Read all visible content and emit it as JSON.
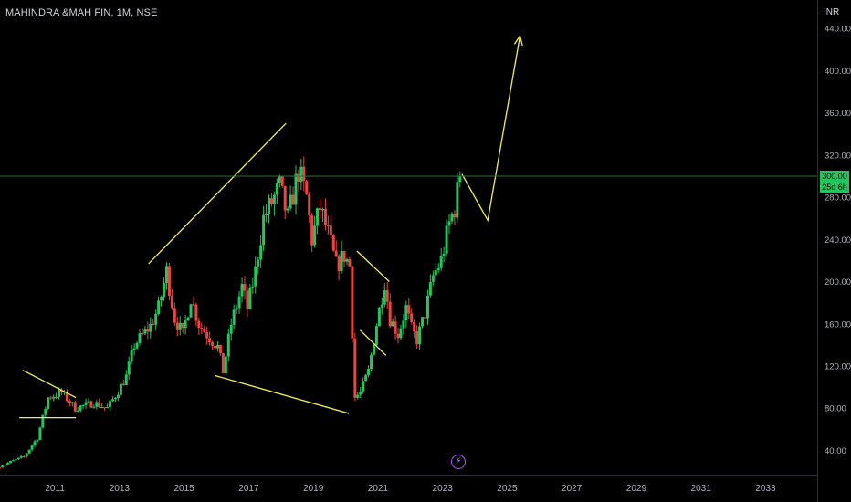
{
  "header": {
    "title": "MAHINDRA &MAH FIN, 1M, NSE",
    "currency": "INR"
  },
  "price_tags": {
    "last": "300.00",
    "countdown": "25d 6h"
  },
  "icons": {
    "bolt": "lightning-bolt-icon"
  },
  "colors": {
    "up": "#22c55e",
    "down": "#ef4444",
    "drawing": "#f5f05a",
    "priceLine": "#2f6b2f",
    "text": "#d1d4dc",
    "bolt": "#a855f7"
  },
  "chart_data": {
    "type": "candlestick",
    "title": "MAHINDRA &MAH FIN, 1M, NSE",
    "xlabel": "",
    "ylabel": "INR",
    "ylim": [
      17,
      467
    ],
    "xlim": [
      2009.3,
      2034.6
    ],
    "x_ticks": [
      "2011",
      "2013",
      "2015",
      "2017",
      "2019",
      "2021",
      "2023",
      "2025",
      "2027",
      "2029",
      "2031",
      "2033"
    ],
    "y_ticks": [
      "40.00",
      "80.00",
      "120.00",
      "160.00",
      "200.00",
      "240.00",
      "280.00",
      "320.00",
      "360.00",
      "400.00",
      "440.00"
    ],
    "grid": false,
    "last_price": 300.0,
    "close_path": [
      [
        "2009-04",
        25
      ],
      [
        "2010-01",
        34
      ],
      [
        "2010-06",
        52
      ],
      [
        "2010-10",
        90
      ],
      [
        "2011-03",
        95
      ],
      [
        "2011-08",
        80
      ],
      [
        "2012-03",
        85
      ],
      [
        "2012-08",
        80
      ],
      [
        "2012-11",
        92
      ],
      [
        "2013-03",
        110
      ],
      [
        "2013-06",
        140
      ],
      [
        "2013-12",
        158
      ],
      [
        "2014-03",
        175
      ],
      [
        "2014-06",
        210
      ],
      [
        "2014-09",
        165
      ],
      [
        "2014-12",
        150
      ],
      [
        "2015-03",
        185
      ],
      [
        "2015-06",
        160
      ],
      [
        "2015-09",
        150
      ],
      [
        "2016-01",
        138
      ],
      [
        "2016-03",
        115
      ],
      [
        "2016-06",
        160
      ],
      [
        "2016-10",
        195
      ],
      [
        "2016-12",
        175
      ],
      [
        "2017-03",
        210
      ],
      [
        "2017-06",
        260
      ],
      [
        "2017-09",
        275
      ],
      [
        "2017-12",
        290
      ],
      [
        "2018-03",
        260
      ],
      [
        "2018-07",
        305
      ],
      [
        "2018-10",
        280
      ],
      [
        "2018-12",
        240
      ],
      [
        "2019-03",
        270
      ],
      [
        "2019-06",
        245
      ],
      [
        "2019-09",
        215
      ],
      [
        "2019-12",
        225
      ],
      [
        "2020-02",
        215
      ],
      [
        "2020-04",
        90
      ],
      [
        "2020-06",
        95
      ],
      [
        "2020-09",
        115
      ],
      [
        "2020-12",
        160
      ],
      [
        "2021-03",
        200
      ],
      [
        "2021-05",
        165
      ],
      [
        "2021-08",
        150
      ],
      [
        "2021-11",
        175
      ],
      [
        "2022-01",
        155
      ],
      [
        "2022-03",
        145
      ],
      [
        "2022-06",
        170
      ],
      [
        "2022-09",
        205
      ],
      [
        "2022-12",
        220
      ],
      [
        "2023-03",
        255
      ],
      [
        "2023-05",
        270
      ],
      [
        "2023-07",
        300
      ]
    ],
    "annotations": [
      {
        "type": "trendline",
        "points": [
          [
            2010.0,
            116
          ],
          [
            2011.65,
            90
          ]
        ]
      },
      {
        "type": "trendline",
        "points": [
          [
            2009.9,
            71
          ],
          [
            2011.65,
            71
          ]
        ]
      },
      {
        "type": "trendline",
        "points": [
          [
            2013.9,
            217
          ],
          [
            2018.15,
            350
          ]
        ]
      },
      {
        "type": "trendline",
        "points": [
          [
            2015.95,
            111
          ],
          [
            2020.1,
            75
          ]
        ]
      },
      {
        "type": "trendline",
        "points": [
          [
            2020.35,
            229
          ],
          [
            2021.35,
            200
          ]
        ]
      },
      {
        "type": "trendline",
        "points": [
          [
            2020.45,
            154
          ],
          [
            2021.25,
            130
          ]
        ]
      },
      {
        "type": "arrow",
        "points": [
          [
            2023.6,
            302
          ],
          [
            2024.4,
            258
          ],
          [
            2025.4,
            433
          ]
        ]
      }
    ]
  }
}
